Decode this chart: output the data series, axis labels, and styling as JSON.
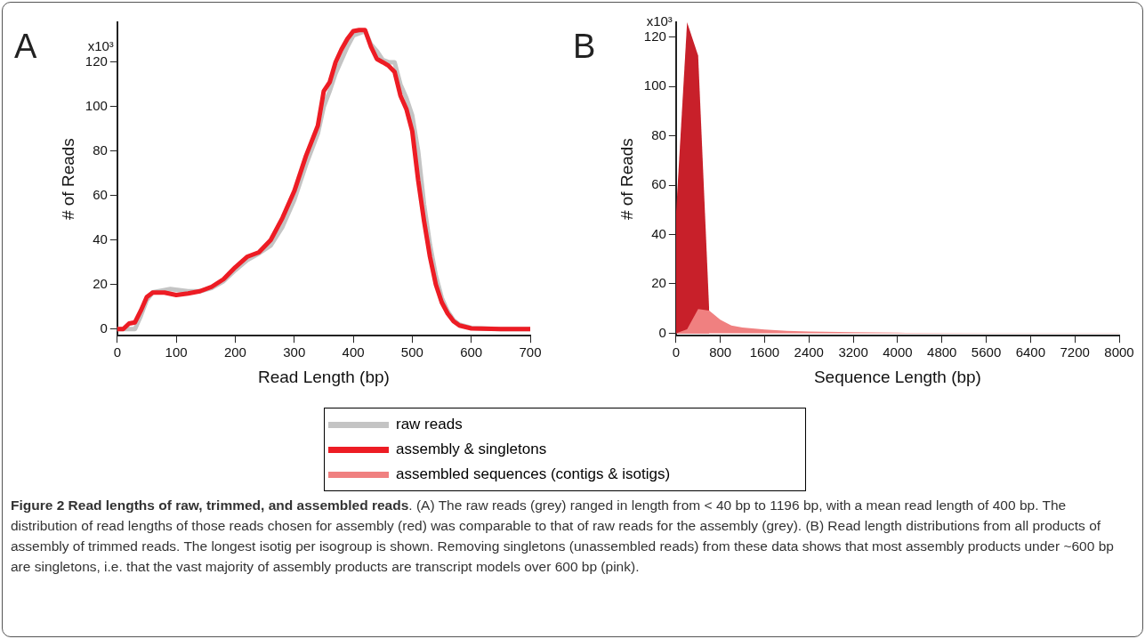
{
  "chart_data": [
    {
      "type": "line",
      "title": "A",
      "xlabel": "Read Length (bp)",
      "ylabel": "# of Reads",
      "xlim": [
        0,
        700
      ],
      "xticks": [
        0,
        100,
        200,
        300,
        400,
        500,
        600,
        700
      ],
      "ylim": [
        -3,
        138
      ],
      "yticks": [
        0,
        20,
        40,
        60,
        80,
        100,
        120
      ],
      "grid": false,
      "legend": "bottom",
      "marker": "none",
      "line_style": "solid",
      "series": [
        {
          "name": "raw reads",
          "color": "#c4c4c4",
          "x": [
            0,
            30,
            40,
            50,
            60,
            90,
            120,
            140,
            160,
            180,
            200,
            220,
            240,
            260,
            280,
            300,
            320,
            340,
            350,
            360,
            370,
            380,
            390,
            400,
            420,
            430,
            440,
            450,
            460,
            470,
            480,
            490,
            500,
            510,
            520,
            530,
            540,
            550,
            560,
            570,
            580,
            600,
            650,
            700
          ],
          "values": [
            0,
            0,
            6,
            13,
            16.5,
            18,
            17,
            17,
            18.5,
            21.5,
            26.5,
            31,
            34,
            37.5,
            46,
            58,
            74,
            88,
            100,
            107,
            115,
            121,
            127,
            132,
            134,
            128,
            125,
            121,
            120,
            120,
            110,
            104,
            96,
            80,
            56,
            38,
            24,
            14,
            8,
            4,
            2,
            0.5,
            0,
            0
          ]
        },
        {
          "name": "assembly & singletons",
          "color": "#ed1c24",
          "x": [
            0,
            10,
            20,
            30,
            40,
            50,
            60,
            80,
            100,
            120,
            140,
            160,
            180,
            200,
            220,
            240,
            260,
            280,
            300,
            320,
            340,
            350,
            360,
            370,
            380,
            390,
            400,
            410,
            420,
            430,
            440,
            450,
            460,
            470,
            480,
            490,
            500,
            510,
            520,
            530,
            540,
            550,
            560,
            570,
            580,
            600,
            650,
            700
          ],
          "values": [
            0,
            0,
            2.5,
            3,
            8.3,
            14.4,
            16.4,
            16.4,
            15.3,
            16,
            17,
            19,
            22.4,
            27.8,
            32.5,
            34.5,
            40,
            50,
            62,
            78,
            91.5,
            107,
            111,
            120,
            125.8,
            130.5,
            134,
            134.5,
            134.5,
            127,
            121.5,
            120,
            118.4,
            115.7,
            105,
            99,
            89,
            67,
            48.6,
            32.5,
            20,
            12,
            7,
            3.5,
            1.6,
            0.3,
            0,
            0
          ]
        }
      ],
      "annotations": [
        "x10³"
      ]
    },
    {
      "type": "area",
      "title": "B",
      "xlabel": "Sequence Length (bp)",
      "ylabel": "# of Reads",
      "xlim": [
        0,
        8000
      ],
      "xticks": [
        0,
        800,
        1600,
        2400,
        3200,
        4000,
        4800,
        5600,
        6400,
        7200,
        8000
      ],
      "ylim": [
        -1,
        126
      ],
      "yticks": [
        0,
        20,
        40,
        60,
        80,
        100,
        120
      ],
      "grid": false,
      "legend": "bottom",
      "marker": "none",
      "series": [
        {
          "color": "#c8202a",
          "x": [
            0,
            200,
            400,
            600
          ],
          "values": [
            48,
            126,
            112.5,
            9
          ]
        },
        {
          "name": "assembled sequences (contigs & isotigs)",
          "color": "#f08080",
          "x": [
            0,
            200,
            400,
            600,
            800,
            1000,
            1200,
            1600,
            2000,
            2400,
            3200,
            4000,
            5600,
            8000
          ],
          "values": [
            0,
            1.6,
            9.8,
            9.2,
            5.5,
            3.1,
            2.3,
            1.5,
            1,
            0.7,
            0.4,
            0.2,
            0.1,
            0.1
          ]
        }
      ],
      "annotations": [
        "x10³",
        "Figure 2 Read lengths of raw, trimmed, and assembled reads",
        ". (A) The raw reads (grey) ranged in length from < 40 bp to 1196 bp, with a mean read length of 400 bp. The distribution of read lengths of those reads chosen for assembly (red) was comparable to that of raw reads for the assembly (grey). (B) Read length distributions from all products of assembly of trimmed reads. The longest isotig per isogroup is shown. Removing singletons (unassembled reads) from these data shows that most assembly products under ~600 bp are singletons, i.e. that the vast majority of assembly products are transcript models over 600 bp (pink)."
      ]
    }
  ]
}
